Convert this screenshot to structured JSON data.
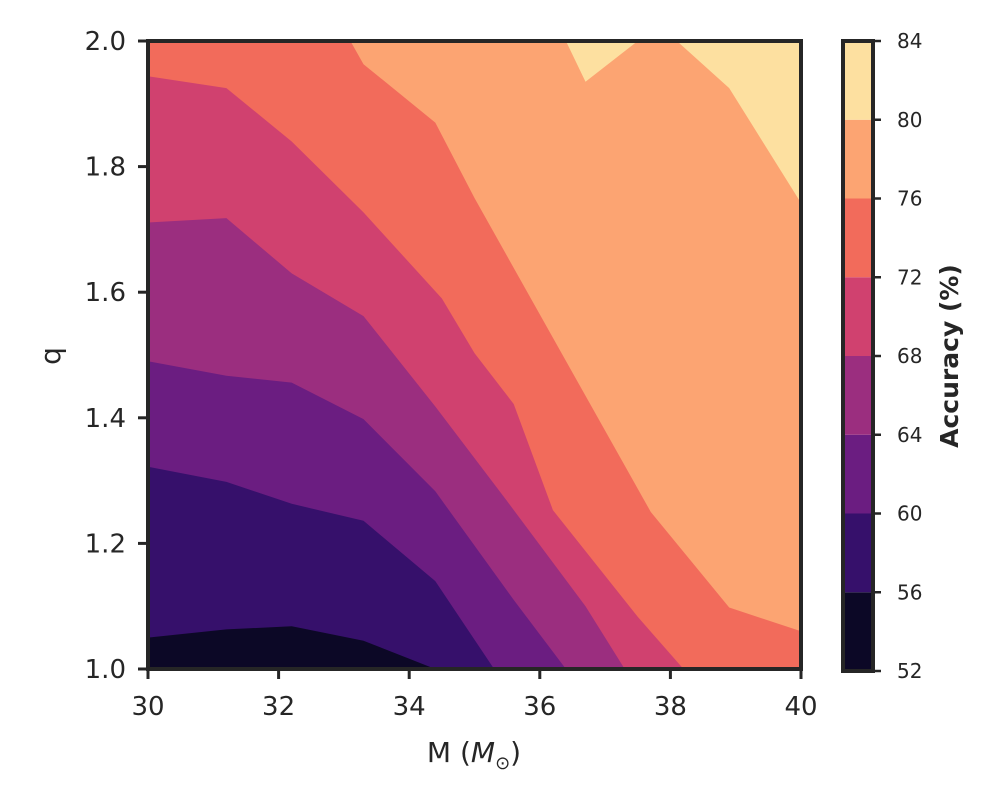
{
  "chart_data": {
    "type": "heatmap",
    "subtype": "filled-contour",
    "colormap": "magma",
    "title": "",
    "xlabel": "M",
    "xlabel_unit": "M",
    "xlabel_unit_sub": "⊙",
    "ylabel": "q",
    "xlim": [
      30,
      40
    ],
    "ylim": [
      1.0,
      2.0
    ],
    "x_ticks": [
      "30",
      "32",
      "34",
      "36",
      "38",
      "40"
    ],
    "y_ticks": [
      "1.0",
      "1.2",
      "1.4",
      "1.6",
      "1.8",
      "2.0"
    ],
    "colorbar": {
      "label": "Accuracy (%)",
      "levels": [
        52,
        56,
        60,
        64,
        68,
        72,
        76,
        80,
        84
      ],
      "tick_labels": [
        "52",
        "56",
        "60",
        "64",
        "68",
        "72",
        "76",
        "80",
        "84"
      ],
      "colors": [
        "#0c0826",
        "#36106b",
        "#6b1d81",
        "#9b2e7f",
        "#d0416f",
        "#f26b5b",
        "#fca472",
        "#fde0a0"
      ]
    },
    "contour_boundaries": [
      {
        "level": 56,
        "points": [
          [
            30,
            1.05
          ],
          [
            31.2,
            1.063
          ],
          [
            32.2,
            1.068
          ],
          [
            33.3,
            1.045
          ],
          [
            34.4,
            1.0
          ]
        ]
      },
      {
        "level": 60,
        "points": [
          [
            30,
            1.322
          ],
          [
            31.2,
            1.298
          ],
          [
            32.2,
            1.263
          ],
          [
            33.3,
            1.236
          ],
          [
            34.4,
            1.14
          ],
          [
            35.3,
            1.0
          ]
        ]
      },
      {
        "level": 64,
        "points": [
          [
            30,
            1.49
          ],
          [
            31.2,
            1.467
          ],
          [
            32.2,
            1.456
          ],
          [
            33.3,
            1.398
          ],
          [
            34.4,
            1.283
          ],
          [
            35.6,
            1.11
          ],
          [
            36.4,
            1.0
          ]
        ]
      },
      {
        "level": 68,
        "points": [
          [
            30,
            1.711
          ],
          [
            31.2,
            1.718
          ],
          [
            32.2,
            1.63
          ],
          [
            33.3,
            1.562
          ],
          [
            34.4,
            1.418
          ],
          [
            35.5,
            1.267
          ],
          [
            36.7,
            1.1
          ],
          [
            37.3,
            1.0
          ]
        ]
      },
      {
        "level": 72,
        "points": [
          [
            30,
            1.944
          ],
          [
            31.2,
            1.925
          ],
          [
            32.2,
            1.84
          ],
          [
            33.3,
            1.727
          ],
          [
            34.5,
            1.59
          ],
          [
            35.0,
            1.503
          ],
          [
            35.6,
            1.422
          ],
          [
            36.2,
            1.253
          ],
          [
            37.5,
            1.083
          ],
          [
            38.2,
            1.0
          ]
        ]
      },
      {
        "level": 76,
        "points": [
          [
            33.1,
            2.0
          ],
          [
            33.3,
            1.963
          ],
          [
            34.4,
            1.87
          ],
          [
            35.0,
            1.75
          ],
          [
            36.7,
            1.435
          ],
          [
            37.7,
            1.25
          ],
          [
            38.9,
            1.098
          ],
          [
            40,
            1.06
          ]
        ]
      },
      {
        "level": 80,
        "points": [
          [
            36.4,
            2.0
          ],
          [
            36.7,
            1.935
          ],
          [
            37.5,
            2.0
          ]
        ],
        "secondary_points": [
          [
            38.1,
            2.0
          ],
          [
            38.9,
            1.925
          ],
          [
            40,
            1.742
          ]
        ]
      }
    ]
  }
}
